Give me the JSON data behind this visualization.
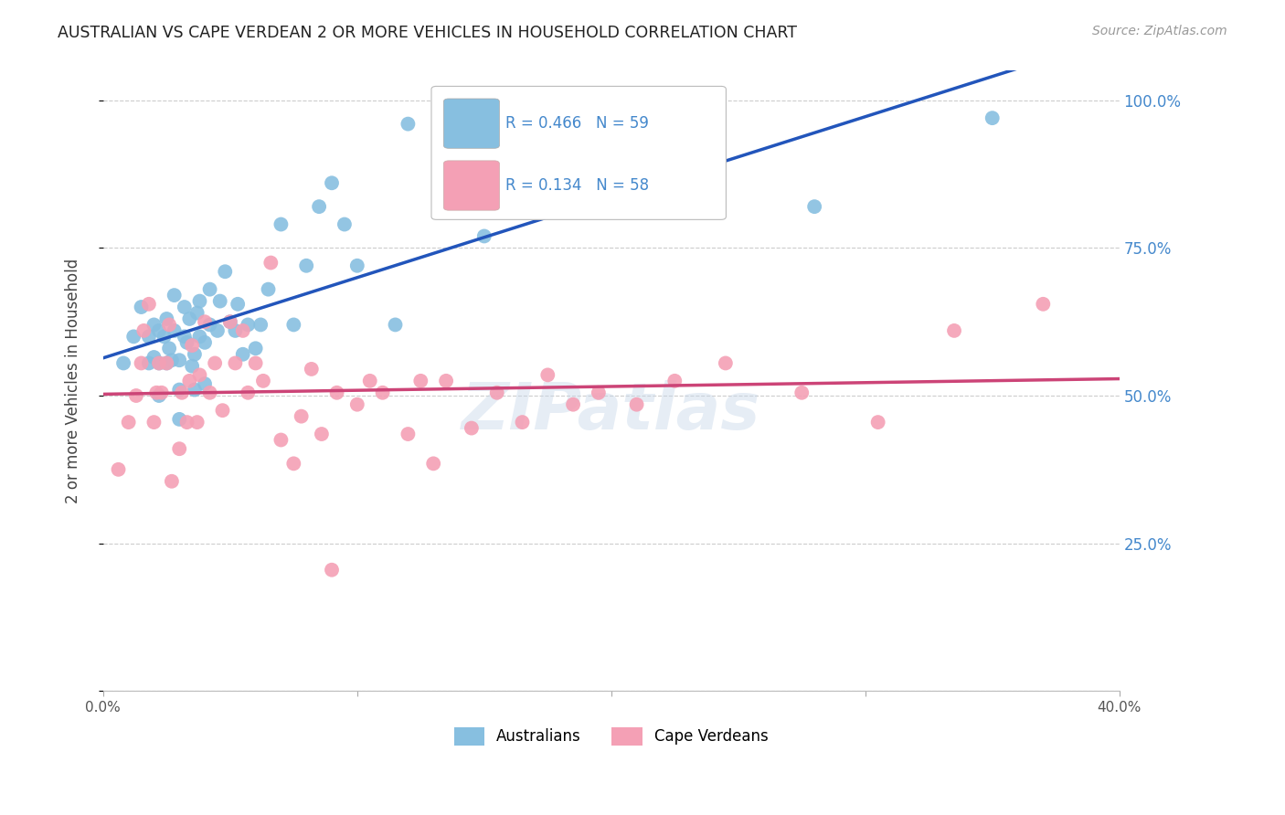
{
  "title": "AUSTRALIAN VS CAPE VERDEAN 2 OR MORE VEHICLES IN HOUSEHOLD CORRELATION CHART",
  "source": "Source: ZipAtlas.com",
  "ylabel": "2 or more Vehicles in Household",
  "xlim": [
    0.0,
    0.4
  ],
  "ylim": [
    0.0,
    1.05
  ],
  "background_color": "#ffffff",
  "grid_color": "#cccccc",
  "australian_color": "#87bfe0",
  "capeverdean_color": "#f4a0b5",
  "australian_line_color": "#2255bb",
  "capeverdean_line_color": "#cc4477",
  "R_australian": 0.466,
  "N_australian": 59,
  "R_capeverdean": 0.134,
  "N_capeverdean": 58,
  "australian_x": [
    0.008,
    0.012,
    0.015,
    0.018,
    0.018,
    0.02,
    0.02,
    0.022,
    0.022,
    0.022,
    0.024,
    0.025,
    0.025,
    0.026,
    0.027,
    0.028,
    0.028,
    0.03,
    0.03,
    0.03,
    0.032,
    0.032,
    0.033,
    0.034,
    0.035,
    0.036,
    0.036,
    0.037,
    0.038,
    0.038,
    0.04,
    0.04,
    0.042,
    0.042,
    0.045,
    0.046,
    0.048,
    0.05,
    0.052,
    0.053,
    0.055,
    0.057,
    0.06,
    0.062,
    0.065,
    0.07,
    0.075,
    0.08,
    0.085,
    0.09,
    0.095,
    0.1,
    0.115,
    0.12,
    0.15,
    0.17,
    0.19,
    0.28,
    0.35
  ],
  "australian_y": [
    0.555,
    0.6,
    0.65,
    0.555,
    0.6,
    0.565,
    0.62,
    0.5,
    0.555,
    0.61,
    0.6,
    0.555,
    0.63,
    0.58,
    0.56,
    0.61,
    0.67,
    0.46,
    0.51,
    0.56,
    0.6,
    0.65,
    0.59,
    0.63,
    0.55,
    0.51,
    0.57,
    0.64,
    0.6,
    0.66,
    0.52,
    0.59,
    0.62,
    0.68,
    0.61,
    0.66,
    0.71,
    0.625,
    0.61,
    0.655,
    0.57,
    0.62,
    0.58,
    0.62,
    0.68,
    0.79,
    0.62,
    0.72,
    0.82,
    0.86,
    0.79,
    0.72,
    0.62,
    0.96,
    0.77,
    0.87,
    0.84,
    0.82,
    0.97
  ],
  "capeverdean_x": [
    0.006,
    0.01,
    0.013,
    0.015,
    0.016,
    0.018,
    0.02,
    0.021,
    0.022,
    0.023,
    0.025,
    0.026,
    0.027,
    0.03,
    0.031,
    0.033,
    0.034,
    0.035,
    0.037,
    0.038,
    0.04,
    0.042,
    0.044,
    0.047,
    0.05,
    0.052,
    0.055,
    0.057,
    0.06,
    0.063,
    0.066,
    0.07,
    0.075,
    0.078,
    0.082,
    0.086,
    0.09,
    0.092,
    0.1,
    0.105,
    0.11,
    0.12,
    0.125,
    0.13,
    0.135,
    0.145,
    0.155,
    0.165,
    0.175,
    0.185,
    0.195,
    0.21,
    0.225,
    0.245,
    0.275,
    0.305,
    0.335,
    0.37
  ],
  "capeverdean_y": [
    0.375,
    0.455,
    0.5,
    0.555,
    0.61,
    0.655,
    0.455,
    0.505,
    0.555,
    0.505,
    0.555,
    0.62,
    0.355,
    0.41,
    0.505,
    0.455,
    0.525,
    0.585,
    0.455,
    0.535,
    0.625,
    0.505,
    0.555,
    0.475,
    0.625,
    0.555,
    0.61,
    0.505,
    0.555,
    0.525,
    0.725,
    0.425,
    0.385,
    0.465,
    0.545,
    0.435,
    0.205,
    0.505,
    0.485,
    0.525,
    0.505,
    0.435,
    0.525,
    0.385,
    0.525,
    0.445,
    0.505,
    0.455,
    0.535,
    0.485,
    0.505,
    0.485,
    0.525,
    0.555,
    0.505,
    0.455,
    0.61,
    0.655
  ]
}
